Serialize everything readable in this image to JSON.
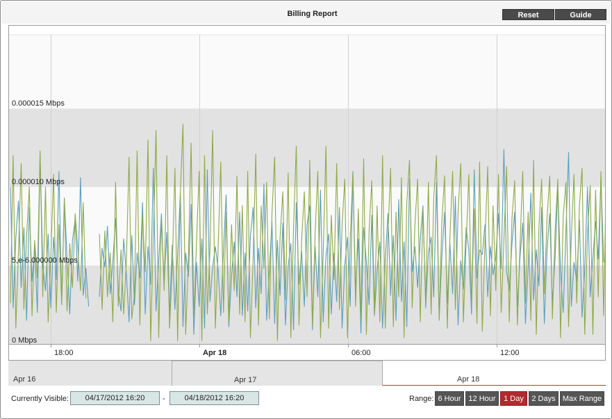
{
  "header": {
    "title": "Billing Report",
    "reset_label": "Reset",
    "guide_label": "Guide"
  },
  "colors": {
    "series_a": "#5b9dbf",
    "series_b": "#8fa848",
    "band_gray": "#e2e2e2",
    "band_light": "#fafafa",
    "active_range": "#b02a2f",
    "button_dark": "#555555"
  },
  "chart_data": {
    "type": "line",
    "x_tick_labels": [
      "18:00",
      "Apr 18",
      "06:00",
      "12:00"
    ],
    "x_tick_bold": [
      false,
      true,
      false,
      false
    ],
    "y_tick_labels": [
      "0 Mbps",
      "5,e-6.000000 Mbps",
      "0.000010 Mbps",
      "0.000015 Mbps"
    ],
    "y_tick_values": [
      0,
      5e-06,
      1e-05,
      1.5e-05
    ],
    "ylim": [
      0,
      1.97e-05
    ],
    "grid": "alternating horizontal bands with vertical lines",
    "sample_interval_minutes": 4,
    "series": [
      {
        "color": "#5b9dbf",
        "values": [
          1e-05,
          2.3e-06,
          6.8e-06,
          9.1e-06,
          3.6e-06,
          7.4e-06,
          1.5e-06,
          8.7e-06,
          4e-06,
          6.2e-06,
          2e-06,
          1.2e-05,
          5e-06,
          3.4e-06,
          7e-06,
          2.3e-06,
          6.8e-06,
          4.1e-06,
          1.1e-05,
          2.6e-06,
          9.3e-06,
          5.5e-06,
          1.9e-06,
          6.6e-06,
          7.9e-06,
          4e-06,
          1.06e-05,
          3.1e-06,
          4.8e-06,
          2.4e-06,
          null,
          null,
          null,
          3e-06,
          6.1e-06,
          4.9e-06,
          7.5e-06,
          3.2e-06,
          5.3e-06,
          8e-06,
          3.4e-06,
          2.1e-06,
          6.7e-06,
          4.5e-06,
          1.4e-06,
          6.9e-06,
          2.5e-06,
          5.8e-06,
          4.2e-06,
          9e-06,
          1.9e-06,
          6.2e-06,
          3.8e-06,
          1.12e-05,
          2.1e-06,
          5.3e-06,
          8.3e-06,
          3.8e-06,
          7.1e-06,
          1.8e-06,
          6.3e-06,
          2.2e-06,
          5.7e-06,
          9.6e-06,
          1.1e-06,
          5.8e-06,
          4.3e-06,
          8.9e-06,
          6e-07,
          5.2e-06,
          2.4e-06,
          6.7e-06,
          1e-06,
          1.11e-05,
          2.7e-06,
          4.9e-06,
          6.2e-06,
          4.8e-06,
          1.8e-06,
          5.9e-06,
          9.5e-06,
          1.1e-06,
          4.3e-06,
          6.5e-06,
          3e-06,
          8.4e-06,
          1.8e-06,
          5.8e-06,
          2.1e-06,
          6.9e-06,
          8.7e-06,
          2.3e-06,
          6.1e-06,
          3.2e-06,
          1.02e-05,
          1.5e-06,
          4.6e-06,
          7.8e-06,
          1.3e-06,
          6.6e-06,
          3.1e-06,
          7.7e-06,
          1.2e-06,
          4.9e-06,
          6.4e-06,
          9e-07,
          9e-06,
          3.8e-06,
          5.9e-06,
          2.4e-06,
          7.6e-06,
          8.8e-06,
          9e-07,
          6.2e-06,
          3e-06,
          9.8e-06,
          1.4e-06,
          5.6e-06,
          7e-06,
          1.9e-06,
          5.8e-06,
          2.7e-06,
          8.7e-06,
          1e-06,
          5e-06,
          6.8e-06,
          2.4e-06,
          1.1e-05,
          3.4e-06,
          6.7e-06,
          7e-07,
          7.4e-06,
          5.2e-06,
          2.5e-06,
          8.2e-06,
          1.8e-06,
          4.7e-06,
          6.5e-06,
          1e-06,
          5.4e-06,
          8.3e-06,
          3.1e-06,
          6.9e-06,
          1.5e-06,
          9.2e-06,
          2.7e-06,
          6.5e-06,
          1.1e-06,
          1.05e-05,
          4.6e-06,
          6.2e-06,
          3.6e-06,
          6.7e-06,
          8.8e-06,
          2.3e-06,
          5.8e-06,
          6.8e-06,
          3e-06,
          1.03e-05,
          1.6e-06,
          5.6e-06,
          8.4e-06,
          2.6e-06,
          6.4e-06,
          3.2e-06,
          9.4e-06,
          1.2e-06,
          5.3e-06,
          3.5e-06,
          7.4e-06,
          6e-06,
          1.9e-06,
          1.11e-05,
          4.2e-06,
          6e-06,
          5.7e-06,
          7.6e-06,
          3e-06,
          6.2e-06,
          4.4e-06,
          5.5e-06,
          8.3e-06,
          4.8e-06,
          1.24e-05,
          4.6e-06,
          3.4e-06,
          6.4e-06,
          8.4e-06,
          2.4e-06,
          5.6e-06,
          7.7e-06,
          1.3e-06,
          4.8e-06,
          9.6e-06,
          2.8e-06,
          6e-06,
          3.7e-06,
          8.7e-06,
          1.3e-06,
          6e-06,
          8.3e-06,
          2.6e-06,
          5.5e-06,
          1e-05,
          4.6e-06,
          2e-06,
          7.2e-06,
          1.22e-05,
          2.4e-06,
          5.2e-06,
          4e-06,
          7.9e-06,
          1.7e-06,
          4.7e-06,
          1e-05,
          3e-06,
          5.5e-06,
          7.8e-06,
          5.4e-06,
          1.06e-05,
          5.2e-06
        ]
      },
      {
        "color": "#8fa848",
        "values": [
          2.6e-06,
          1.2e-05,
          1e-06,
          5.9e-06,
          1.15e-05,
          2.2e-06,
          6.9e-06,
          1e-05,
          1.8e-06,
          6.6e-06,
          4.2e-06,
          1.23e-05,
          3e-06,
          1e-05,
          1.4e-06,
          5.6e-06,
          1.08e-05,
          2e-06,
          7.6e-06,
          2.5e-06,
          9.2e-06,
          2.1e-06,
          6.4e-06,
          3.6e-06,
          8.3e-06,
          6.1e-06,
          3.4e-06,
          9e-06,
          2.9e-06,
          null,
          null,
          null,
          null,
          7e-06,
          2.2e-06,
          7.2e-06,
          3e-06,
          5.8e-06,
          1.4e-06,
          1.03e-05,
          2.4e-06,
          6e-06,
          1.9e-06,
          5.2e-06,
          1.19e-05,
          1.6e-06,
          3.2e-06,
          1.23e-05,
          1.2e-06,
          8.2e-06,
          4.6e-06,
          1.3e-05,
          2e-07,
          6.7e-06,
          1.36e-05,
          4e-07,
          8e-06,
          3.4e-06,
          1.2e-05,
          1e-06,
          4.7e-06,
          1.12e-05,
          2e-07,
          9.6e-06,
          1.4e-05,
          6e-07,
          5.4e-06,
          1.28e-05,
          1.8e-06,
          6.3e-06,
          1.1e-05,
          2e-07,
          1.2e-05,
          1.9e-06,
          6.1e-06,
          1.36e-05,
          1e-06,
          5.9e-06,
          1.16e-05,
          2e-06,
          8.4e-06,
          1.4e-06,
          7.6e-06,
          3.4e-06,
          1.07e-05,
          1.9e-06,
          8.8e-06,
          1.4e-06,
          1.1e-05,
          4e-07,
          5.4e-06,
          1.21e-05,
          1.2e-06,
          8.8e-06,
          4.8e-06,
          1.03e-05,
          1.6e-06,
          8.3e-06,
          1.19e-05,
          2e-07,
          6.8e-06,
          9.7e-06,
          2.8e-06,
          1.09e-05,
          4e-07,
          7.4e-06,
          1.26e-05,
          1.2e-06,
          6.6e-06,
          9.7e-06,
          3e-06,
          1.17e-05,
          1.1e-06,
          7e-06,
          1.1e-05,
          4e-07,
          5.8e-06,
          1.26e-05,
          1e-06,
          8.2e-06,
          4.1e-06,
          1.15e-05,
          2.2e-06,
          7.6e-06,
          1.05e-05,
          4e-07,
          6.6e-06,
          1.09e-05,
          2.4e-06,
          8.6e-06,
          1.5e-06,
          1.18e-05,
          6e-07,
          7.2e-06,
          1.04e-05,
          2e-06,
          8.8e-06,
          1.4e-06,
          1.2e-05,
          1e-06,
          7e-06,
          1.12e-05,
          1.1e-06,
          8.4e-06,
          3e-06,
          1.06e-05,
          4e-07,
          9e-06,
          1.17e-05,
          2.3e-06,
          7.6e-06,
          1.05e-05,
          1.4e-06,
          8.6e-06,
          2.6e-06,
          1.03e-05,
          1.9e-06,
          9.3e-06,
          1.2e-05,
          1.5e-06,
          7.8e-06,
          1.07e-05,
          1e-06,
          6.8e-06,
          1.1e-05,
          2.2e-06,
          8.4e-06,
          1.15e-05,
          1.4e-06,
          6.4e-06,
          1.08e-05,
          2.4e-06,
          8.6e-06,
          1.3e-06,
          1.16e-05,
          8e-07,
          6.6e-06,
          1.13e-05,
          1.8e-06,
          8.8e-06,
          3.4e-06,
          1.08e-05,
          2e-06,
          6.6e-06,
          1.13e-05,
          1.4e-06,
          8e-06,
          1.04e-05,
          1.2e-06,
          6.4e-06,
          1.1e-05,
          2.6e-06,
          8.4e-06,
          1.5e-06,
          1.17e-05,
          6e-07,
          7.4e-06,
          1.05e-05,
          3.2e-06,
          8e-06,
          1.07e-05,
          1.6e-06,
          7.2e-06,
          1.05e-05,
          4e-07,
          8.2e-06,
          1.03e-05,
          1.1e-06,
          6.8e-06,
          1.08e-05,
          2.6e-06,
          8.8e-06,
          1.12e-05,
          6e-07,
          7e-06,
          1.01e-05,
          6e-07,
          9.8e-06,
          3e-06,
          1.1e-05,
          1.8e-06,
          1.13e-05,
          6e-07,
          1.09e-05,
          5.5e-06
        ]
      }
    ]
  },
  "navigator": {
    "labels": [
      "Apr 16",
      "Apr 17",
      "Apr 18"
    ]
  },
  "footer": {
    "visible_label": "Currently Visible:",
    "from_date": "04/17/2012 16:20",
    "separator": "-",
    "to_date": "04/18/2012 16:20",
    "range_label": "Range:",
    "range_buttons": [
      {
        "label": "6 Hour",
        "active": false
      },
      {
        "label": "12 Hour",
        "active": false
      },
      {
        "label": "1 Day",
        "active": true
      },
      {
        "label": "2 Days",
        "active": false
      },
      {
        "label": "Max Range",
        "active": false
      }
    ]
  }
}
